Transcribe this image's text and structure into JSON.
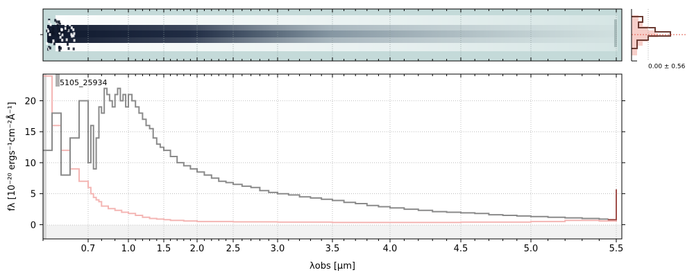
{
  "chart_data": {
    "type": "line",
    "id_label": "5105_25934",
    "xlabel": "λobs [μm]",
    "ylabel": "fλ [10⁻²⁰ ergs⁻¹cm⁻²Å⁻¹]",
    "x_ticks": [
      "0.7",
      "1.0",
      "1.5",
      "2.0",
      "2.5",
      "3.0",
      "3.5",
      "4.0",
      "4.5",
      "5.0",
      "5.5"
    ],
    "y_ticks": [
      "0",
      "5",
      "10",
      "15",
      "20"
    ],
    "xlim": [
      0.6,
      5.52
    ],
    "ylim": [
      -2.3,
      24.3
    ],
    "x_scale": "non-linear (compressed at long wavelengths)",
    "grid": true,
    "series": [
      {
        "role": "flux",
        "color": "#8a8a8a",
        "x": [
          0.6,
          0.62,
          0.64,
          0.66,
          0.68,
          0.7,
          0.72,
          0.74,
          0.76,
          0.78,
          0.8,
          0.82,
          0.84,
          0.86,
          0.88,
          0.9,
          0.92,
          0.94,
          0.96,
          0.98,
          1.0,
          1.05,
          1.1,
          1.15,
          1.2,
          1.25,
          1.3,
          1.35,
          1.4,
          1.45,
          1.5,
          1.6,
          1.7,
          1.8,
          1.9,
          2.0,
          2.1,
          2.2,
          2.3,
          2.4,
          2.5,
          2.6,
          2.7,
          2.8,
          2.9,
          3.0,
          3.1,
          3.2,
          3.3,
          3.4,
          3.5,
          3.6,
          3.7,
          3.8,
          3.9,
          4.0,
          4.1,
          4.2,
          4.3,
          4.4,
          4.5,
          4.6,
          4.7,
          4.8,
          4.9,
          5.0,
          5.1,
          5.2,
          5.3,
          5.4,
          5.45,
          5.5
        ],
        "y": [
          12,
          18,
          8,
          14,
          20,
          10,
          16,
          9,
          14,
          19,
          18,
          22,
          21,
          20,
          19,
          21,
          22,
          20,
          21,
          19,
          21,
          20,
          19,
          18,
          17,
          16,
          15.5,
          14,
          13,
          12.5,
          12,
          11,
          10,
          9.5,
          9,
          8.5,
          8,
          7.5,
          7,
          6.8,
          6.5,
          6.2,
          6,
          5.5,
          5.2,
          5,
          4.8,
          4.5,
          4.3,
          4.1,
          3.9,
          3.6,
          3.4,
          3.1,
          2.9,
          2.7,
          2.5,
          2.3,
          2.1,
          2.0,
          1.9,
          1.8,
          1.6,
          1.5,
          1.4,
          1.3,
          1.2,
          1.1,
          1.0,
          0.9,
          0.8,
          5.7
        ]
      },
      {
        "role": "uncertainty",
        "color": "#f4b6b4",
        "x": [
          0.6,
          0.62,
          0.64,
          0.66,
          0.68,
          0.7,
          0.72,
          0.74,
          0.76,
          0.78,
          0.8,
          0.85,
          0.9,
          0.95,
          1.0,
          1.1,
          1.2,
          1.3,
          1.4,
          1.5,
          1.6,
          1.8,
          2.0,
          2.5,
          3.0,
          3.5,
          4.0,
          4.5,
          5.0,
          5.2,
          5.4,
          5.5
        ],
        "y": [
          24,
          16,
          12,
          9,
          7,
          6,
          5,
          4.4,
          4,
          3.7,
          3,
          2.6,
          2.3,
          2.0,
          1.8,
          1.5,
          1.2,
          1.0,
          0.9,
          0.8,
          0.7,
          0.6,
          0.5,
          0.45,
          0.4,
          0.35,
          0.35,
          0.4,
          0.5,
          0.7,
          0.6,
          5.0
        ]
      }
    ],
    "histogram": {
      "label": "0.00 ± 0.56",
      "profile_color": "#6b3b33",
      "fill_color": "#f7cfca"
    }
  }
}
